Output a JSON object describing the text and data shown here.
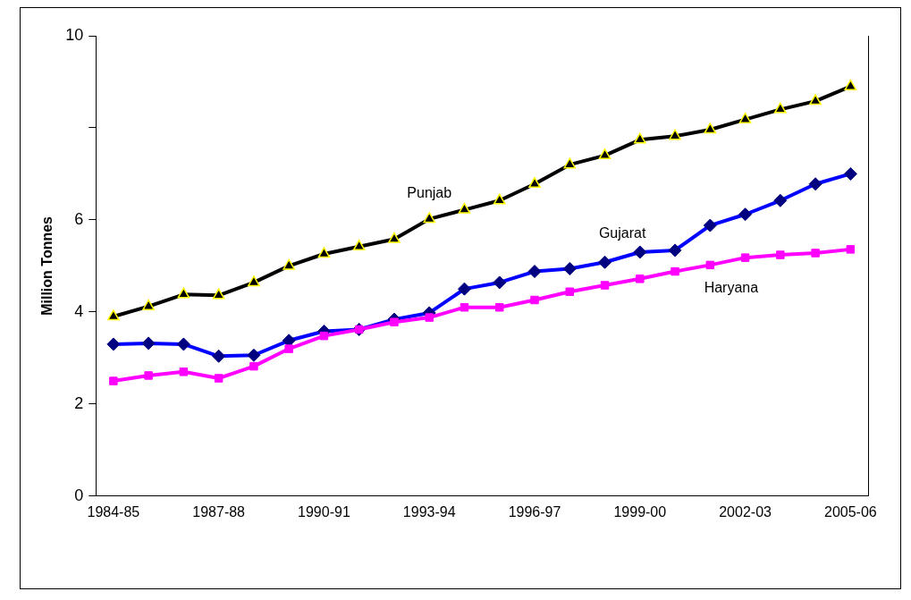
{
  "chart_data": {
    "type": "line",
    "ylabel": "Million Tonnes",
    "categories": [
      "1984-85",
      null,
      null,
      "1987-88",
      null,
      null,
      "1990-91",
      null,
      null,
      "1993-94",
      null,
      null,
      "1996-97",
      null,
      null,
      "1999-00",
      null,
      null,
      "2002-03",
      null,
      null,
      "2005-06"
    ],
    "series": [
      {
        "name": "Punjab",
        "color": "#000000",
        "marker": "triangle",
        "values": [
          3.9,
          4.12,
          4.38,
          4.36,
          4.64,
          5.0,
          5.26,
          5.42,
          5.58,
          6.02,
          6.22,
          6.42,
          6.78,
          7.2,
          7.4,
          7.74,
          7.82,
          7.96,
          8.18,
          8.4,
          8.58,
          8.9
        ]
      },
      {
        "name": "Gujarat",
        "color": "#0000ff",
        "marker": "diamond",
        "values": [
          3.3,
          3.32,
          3.3,
          3.04,
          3.06,
          3.38,
          3.58,
          3.62,
          3.84,
          3.98,
          4.5,
          4.64,
          4.88,
          4.94,
          5.08,
          5.3,
          5.34,
          5.88,
          6.12,
          6.42,
          6.78,
          7.0
        ]
      },
      {
        "name": "Haryana",
        "color": "#ff00ff",
        "marker": "square",
        "values": [
          2.5,
          2.62,
          2.7,
          2.56,
          2.82,
          3.2,
          3.48,
          3.62,
          3.78,
          3.88,
          4.1,
          4.1,
          4.26,
          4.44,
          4.58,
          4.72,
          4.88,
          5.02,
          5.18,
          5.24,
          5.28,
          5.36
        ]
      }
    ],
    "ylim": [
      0,
      10
    ],
    "yticks": [
      0,
      2,
      4,
      6,
      {
        "value": 8,
        "label": null
      },
      10
    ],
    "grid": false,
    "legend": false
  }
}
